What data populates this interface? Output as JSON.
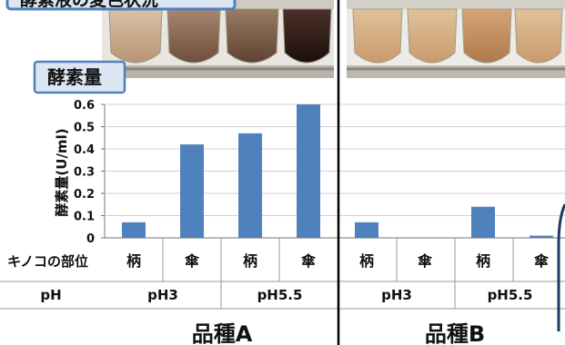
{
  "header_label": "酵素液の変色状況",
  "chart_data": {
    "type": "bar",
    "title": "酵素量",
    "ylabel": "酵素量(U/ml)",
    "ylim": [
      0,
      0.6
    ],
    "yticks": [
      "0",
      "0.1",
      "0.2",
      "0.3",
      "0.4",
      "0.5",
      "0.6"
    ],
    "bar_color": "#4f81bd",
    "groups": [
      {
        "variety": "品種A",
        "ph": [
          "pH3",
          "pH5.5"
        ],
        "parts": [
          "柄",
          "傘",
          "柄",
          "傘"
        ],
        "values": [
          0.07,
          0.42,
          0.47,
          0.6
        ]
      },
      {
        "variety": "品種B",
        "ph": [
          "pH3",
          "pH5.5"
        ],
        "parts": [
          "柄",
          "傘",
          "柄",
          "傘"
        ],
        "values": [
          0.07,
          0.0,
          0.14,
          0.01
        ]
      }
    ],
    "row_labels": {
      "part": "キノコの部位",
      "ph": "pH"
    }
  }
}
